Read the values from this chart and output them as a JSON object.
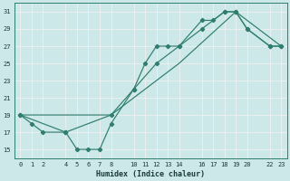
{
  "xlabel": "Humidex (Indice chaleur)",
  "xlim": [
    -0.5,
    23.5
  ],
  "ylim": [
    14.0,
    32.0
  ],
  "xticks": [
    0,
    1,
    2,
    4,
    5,
    6,
    7,
    8,
    10,
    11,
    12,
    13,
    14,
    16,
    17,
    18,
    19,
    20,
    22,
    23
  ],
  "yticks": [
    15,
    17,
    19,
    21,
    23,
    25,
    27,
    29,
    31
  ],
  "bg_color": "#cce8e8",
  "grid_color": "#f0f0f0",
  "line_color": "#2e7d6e",
  "line1_x": [
    0,
    1,
    2,
    4,
    5,
    6,
    7,
    8,
    10,
    11,
    12,
    13,
    14,
    16,
    17,
    18,
    19,
    20,
    22,
    23
  ],
  "line1_y": [
    19,
    18,
    17,
    17,
    15,
    15,
    15,
    18,
    22,
    25,
    27,
    27,
    27,
    30,
    30,
    31,
    31,
    29,
    27,
    27
  ],
  "line2_x": [
    0,
    4,
    8,
    10,
    12,
    14,
    16,
    18,
    19,
    20,
    22,
    23
  ],
  "line2_y": [
    19,
    17,
    19,
    22,
    25,
    27,
    29,
    31,
    31,
    29,
    27,
    27
  ],
  "line3_x": [
    0,
    8,
    14,
    19,
    23
  ],
  "line3_y": [
    19,
    19,
    25,
    31,
    27
  ]
}
